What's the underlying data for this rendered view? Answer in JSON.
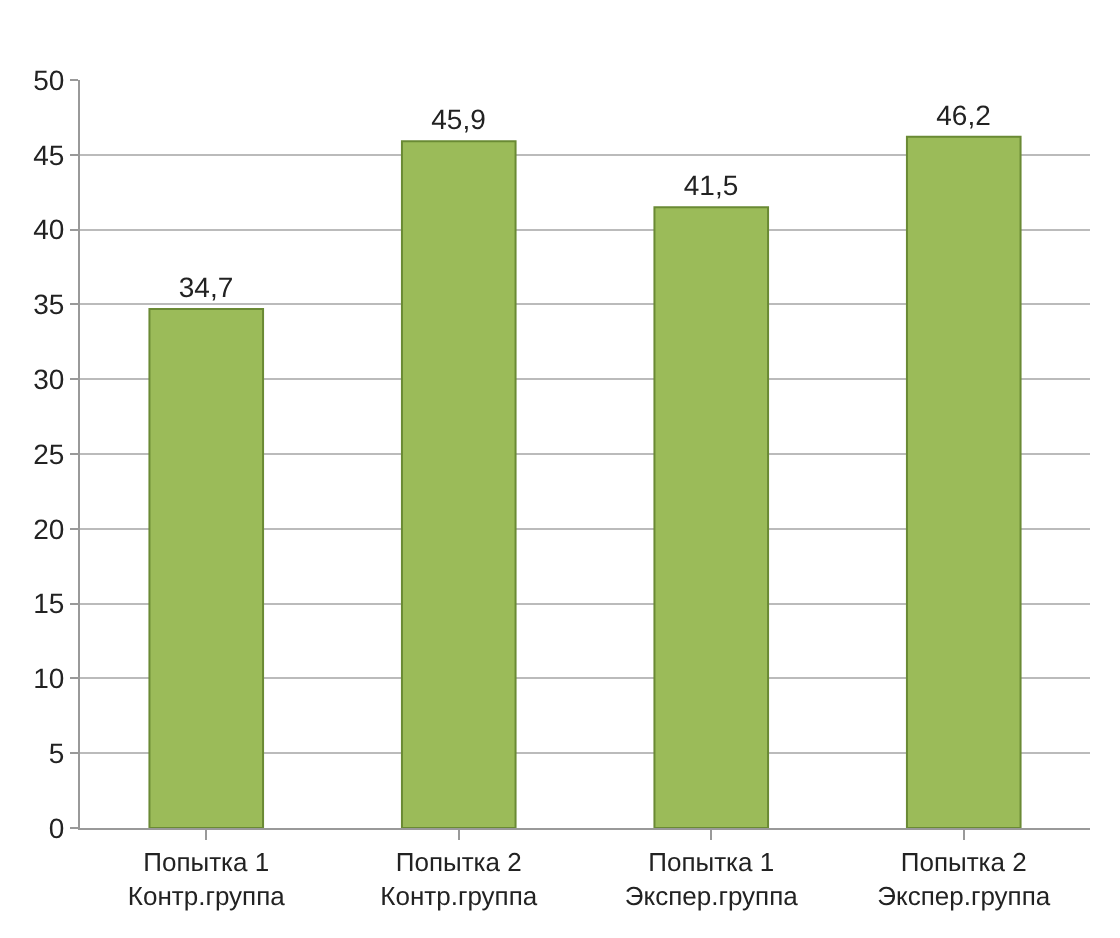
{
  "chart_data": {
    "type": "bar",
    "categories": [
      "Попытка 1\nКонтр.группа",
      "Попытка 2\nКонтр.группа",
      "Попытка 1\nЭкспер.группа",
      "Попытка 2\nЭкспер.группа"
    ],
    "values": [
      34.7,
      45.9,
      41.5,
      46.2
    ],
    "value_labels": [
      "34,7",
      "45,9",
      "41,5",
      "46,2"
    ],
    "color": "#9bbb59",
    "ylim": [
      0,
      50
    ],
    "yticks": [
      0,
      5,
      10,
      15,
      20,
      25,
      30,
      35,
      40,
      45,
      50
    ],
    "grid": "y",
    "legend": false
  }
}
